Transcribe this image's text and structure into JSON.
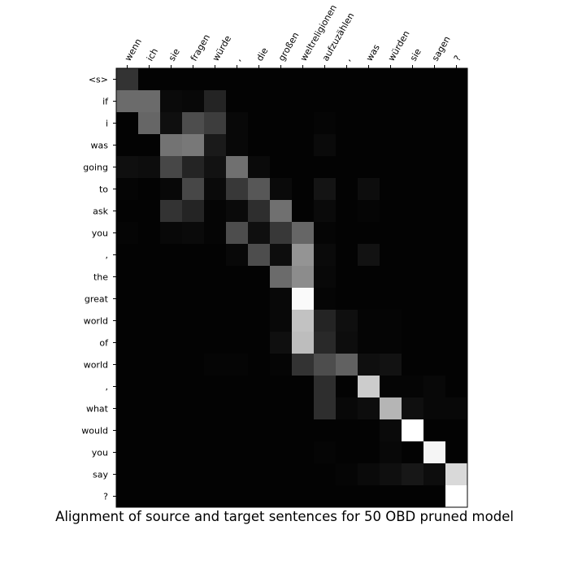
{
  "chart_data": {
    "type": "heatmap",
    "title": "Alignment of source and target sentences for 50 OBD pruned model",
    "colormap": "grayscale",
    "x_labels": [
      "wenn",
      "ich",
      "sie",
      "fragen",
      "würde",
      ",",
      "die",
      "großen",
      "weltreligionen",
      "aufzuzählen",
      ",",
      "was",
      "würden",
      "sie",
      "sagen",
      "?"
    ],
    "y_labels": [
      "<s>",
      "if",
      "i",
      "was",
      "going",
      "to",
      "ask",
      "you",
      ",",
      "the",
      "great",
      "world",
      "of",
      "world",
      ",",
      "what",
      "would",
      "you",
      "say",
      "?"
    ],
    "matrix": [
      [
        0.2,
        0.01,
        0.01,
        0.01,
        0.01,
        0.01,
        0.01,
        0.01,
        0.01,
        0.01,
        0.01,
        0.01,
        0.01,
        0.01,
        0.01,
        0.01
      ],
      [
        0.42,
        0.42,
        0.04,
        0.03,
        0.14,
        0.01,
        0.01,
        0.01,
        0.01,
        0.01,
        0.01,
        0.01,
        0.01,
        0.01,
        0.01,
        0.01
      ],
      [
        0.01,
        0.4,
        0.06,
        0.3,
        0.24,
        0.03,
        0.01,
        0.01,
        0.01,
        0.02,
        0.01,
        0.01,
        0.01,
        0.01,
        0.01,
        0.01
      ],
      [
        0.01,
        0.01,
        0.45,
        0.47,
        0.1,
        0.03,
        0.01,
        0.01,
        0.01,
        0.04,
        0.01,
        0.01,
        0.01,
        0.01,
        0.01,
        0.01
      ],
      [
        0.06,
        0.05,
        0.28,
        0.14,
        0.07,
        0.44,
        0.04,
        0.01,
        0.01,
        0.01,
        0.01,
        0.01,
        0.01,
        0.01,
        0.01,
        0.01
      ],
      [
        0.02,
        0.01,
        0.03,
        0.28,
        0.04,
        0.22,
        0.34,
        0.04,
        0.01,
        0.08,
        0.01,
        0.05,
        0.01,
        0.01,
        0.01,
        0.01
      ],
      [
        0.01,
        0.01,
        0.2,
        0.14,
        0.02,
        0.04,
        0.18,
        0.44,
        0.01,
        0.04,
        0.01,
        0.02,
        0.01,
        0.01,
        0.01,
        0.01
      ],
      [
        0.02,
        0.01,
        0.03,
        0.04,
        0.02,
        0.3,
        0.06,
        0.22,
        0.4,
        0.02,
        0.01,
        0.01,
        0.01,
        0.01,
        0.01,
        0.01
      ],
      [
        0.01,
        0.01,
        0.01,
        0.01,
        0.01,
        0.03,
        0.3,
        0.05,
        0.58,
        0.04,
        0.01,
        0.07,
        0.01,
        0.01,
        0.01,
        0.01
      ],
      [
        0.01,
        0.01,
        0.01,
        0.01,
        0.01,
        0.01,
        0.01,
        0.42,
        0.55,
        0.03,
        0.01,
        0.01,
        0.01,
        0.01,
        0.01,
        0.01
      ],
      [
        0.01,
        0.01,
        0.01,
        0.01,
        0.01,
        0.01,
        0.01,
        0.03,
        0.98,
        0.02,
        0.01,
        0.01,
        0.01,
        0.01,
        0.01,
        0.01
      ],
      [
        0.01,
        0.01,
        0.01,
        0.01,
        0.01,
        0.01,
        0.01,
        0.03,
        0.76,
        0.14,
        0.06,
        0.02,
        0.02,
        0.01,
        0.01,
        0.01
      ],
      [
        0.01,
        0.01,
        0.01,
        0.01,
        0.01,
        0.01,
        0.01,
        0.06,
        0.74,
        0.16,
        0.05,
        0.02,
        0.02,
        0.01,
        0.01,
        0.01
      ],
      [
        0.01,
        0.01,
        0.01,
        0.01,
        0.02,
        0.02,
        0.01,
        0.02,
        0.2,
        0.3,
        0.38,
        0.06,
        0.07,
        0.01,
        0.01,
        0.01
      ],
      [
        0.01,
        0.01,
        0.01,
        0.01,
        0.01,
        0.01,
        0.01,
        0.01,
        0.01,
        0.18,
        0.01,
        0.8,
        0.02,
        0.02,
        0.03,
        0.01
      ],
      [
        0.01,
        0.01,
        0.01,
        0.01,
        0.01,
        0.01,
        0.01,
        0.01,
        0.01,
        0.18,
        0.03,
        0.05,
        0.71,
        0.06,
        0.03,
        0.03
      ],
      [
        0.01,
        0.01,
        0.01,
        0.01,
        0.01,
        0.01,
        0.01,
        0.01,
        0.01,
        0.01,
        0.01,
        0.01,
        0.04,
        1.0,
        0.01,
        0.01
      ],
      [
        0.01,
        0.01,
        0.01,
        0.01,
        0.01,
        0.01,
        0.01,
        0.01,
        0.01,
        0.02,
        0.01,
        0.01,
        0.03,
        0.01,
        0.96,
        0.01
      ],
      [
        0.01,
        0.01,
        0.01,
        0.01,
        0.01,
        0.01,
        0.01,
        0.01,
        0.01,
        0.01,
        0.02,
        0.04,
        0.06,
        0.09,
        0.05,
        0.85
      ],
      [
        0.01,
        0.01,
        0.01,
        0.01,
        0.01,
        0.01,
        0.01,
        0.01,
        0.01,
        0.01,
        0.01,
        0.01,
        0.01,
        0.01,
        0.01,
        1.0
      ]
    ]
  }
}
